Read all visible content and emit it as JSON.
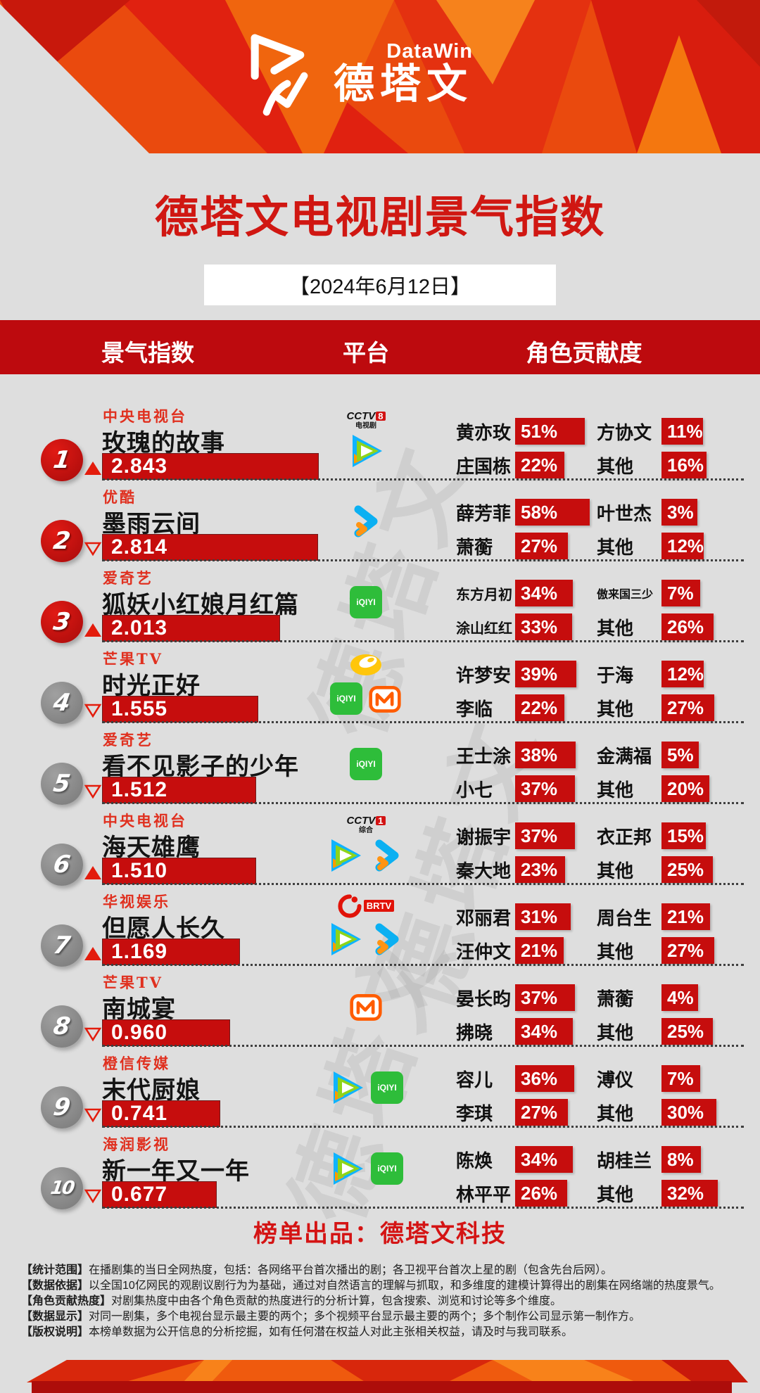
{
  "header": {
    "brand_en": "DataWin",
    "brand_cn": "德塔文",
    "title": "德塔文电视剧景气指数",
    "date": "【2024年6月12日】",
    "columns": {
      "index": "景气指数",
      "platform": "平台",
      "contribution": "角色贡献度"
    }
  },
  "colors": {
    "bg": "#dedede",
    "banner_red": "#ea4a0e",
    "deep_red": "#bd0a0e",
    "bar_red": "#c60d0d",
    "company_red": "#e0301f",
    "title_red": "#d01712",
    "producer_red": "#d41414",
    "trend_red": "#e31c0c",
    "rank_red": "#c40f0f",
    "rank_gray": "#8d8d8d",
    "bottom_bar": "#ad0d0a"
  },
  "watermark_text": "德塔文",
  "platform_meta": {
    "cctv8": {
      "word": "CCTV",
      "num": "8",
      "sub": "电视剧"
    },
    "cctv1": {
      "word": "CCTV",
      "num": "1",
      "sub": "综合"
    },
    "tencent": {
      "label": "腾讯视频"
    },
    "youku": {
      "label": "优酷"
    },
    "iqiyi": {
      "label": "iQIYI"
    },
    "mgtv": {
      "label": "芒果TV"
    },
    "hunantv": {
      "label": "湖南卫视"
    },
    "brtv": {
      "label": "BRTV"
    }
  },
  "chart_data": {
    "type": "bar",
    "title": "德塔文电视剧景气指数",
    "date": "2024年6月12日",
    "categories": [
      "玫瑰的故事",
      "墨雨云间",
      "狐妖小红娘月红篇",
      "时光正好",
      "看不见影子的少年",
      "海天雄鹰",
      "但愿人长久",
      "南城宴",
      "末代厨娘",
      "新一年又一年"
    ],
    "values": [
      2.843,
      2.814,
      2.013,
      1.555,
      1.512,
      1.51,
      1.169,
      0.96,
      0.741,
      0.677
    ]
  },
  "rows": [
    {
      "rank": "1",
      "trend": "up",
      "company": "中央电视台",
      "title": "玫瑰的故事",
      "index": "2.843",
      "platforms": [
        [
          "cctv8"
        ],
        [
          "tencent"
        ]
      ],
      "actors": [
        {
          "name": "黄亦玫",
          "pct": 51
        },
        {
          "name": "方协文",
          "pct": 11
        },
        {
          "name": "庄国栋",
          "pct": 22
        },
        {
          "name": "其他",
          "pct": 16
        }
      ]
    },
    {
      "rank": "2",
      "trend": "down",
      "company": "优酷",
      "title": "墨雨云间",
      "index": "2.814",
      "platforms": [
        [
          "youku"
        ]
      ],
      "actors": [
        {
          "name": "薛芳菲",
          "pct": 58
        },
        {
          "name": "叶世杰",
          "pct": 3
        },
        {
          "name": "萧蘅",
          "pct": 27
        },
        {
          "name": "其他",
          "pct": 12
        }
      ]
    },
    {
      "rank": "3",
      "trend": "up",
      "company": "爱奇艺",
      "title": "狐妖小红娘月红篇",
      "index": "2.013",
      "platforms": [
        [
          "iqiyi"
        ]
      ],
      "actors": [
        {
          "name": "东方月初",
          "pct": 34
        },
        {
          "name": "傲来国三少",
          "pct": 7
        },
        {
          "name": "涂山红红",
          "pct": 33
        },
        {
          "name": "其他",
          "pct": 26
        }
      ]
    },
    {
      "rank": "4",
      "trend": "down",
      "company": "芒果TV",
      "title": "时光正好",
      "index": "1.555",
      "platforms": [
        [
          "hunantv"
        ],
        [
          "iqiyi",
          "mgtv"
        ]
      ],
      "actors": [
        {
          "name": "许梦安",
          "pct": 39
        },
        {
          "name": "于海",
          "pct": 12
        },
        {
          "name": "李临",
          "pct": 22
        },
        {
          "name": "其他",
          "pct": 27
        }
      ]
    },
    {
      "rank": "5",
      "trend": "down",
      "company": "爱奇艺",
      "title": "看不见影子的少年",
      "index": "1.512",
      "platforms": [
        [
          "iqiyi"
        ]
      ],
      "actors": [
        {
          "name": "王士涂",
          "pct": 38
        },
        {
          "name": "金满福",
          "pct": 5
        },
        {
          "name": "小七",
          "pct": 37
        },
        {
          "name": "其他",
          "pct": 20
        }
      ]
    },
    {
      "rank": "6",
      "trend": "up",
      "company": "中央电视台",
      "title": "海天雄鹰",
      "index": "1.510",
      "platforms": [
        [
          "cctv1"
        ],
        [
          "tencent",
          "youku"
        ]
      ],
      "actors": [
        {
          "name": "谢振宇",
          "pct": 37
        },
        {
          "name": "衣正邦",
          "pct": 15
        },
        {
          "name": "秦大地",
          "pct": 23
        },
        {
          "name": "其他",
          "pct": 25
        }
      ]
    },
    {
      "rank": "7",
      "trend": "up",
      "company": "华视娱乐",
      "title": "但愿人长久",
      "index": "1.169",
      "platforms": [
        [
          "brtv"
        ],
        [
          "tencent",
          "youku"
        ]
      ],
      "actors": [
        {
          "name": "邓丽君",
          "pct": 31
        },
        {
          "name": "周台生",
          "pct": 21
        },
        {
          "name": "汪仲文",
          "pct": 21
        },
        {
          "name": "其他",
          "pct": 27
        }
      ]
    },
    {
      "rank": "8",
      "trend": "down",
      "company": "芒果TV",
      "title": "南城宴",
      "index": "0.960",
      "platforms": [
        [
          "mgtv"
        ]
      ],
      "actors": [
        {
          "name": "晏长昀",
          "pct": 37
        },
        {
          "name": "萧蘅",
          "pct": 4
        },
        {
          "name": "拂晓",
          "pct": 34
        },
        {
          "name": "其他",
          "pct": 25
        }
      ]
    },
    {
      "rank": "9",
      "trend": "down",
      "company": "橙信传媒",
      "title": "末代厨娘",
      "index": "0.741",
      "platforms": [
        [
          "tencent",
          "iqiyi"
        ]
      ],
      "actors": [
        {
          "name": "容儿",
          "pct": 36
        },
        {
          "name": "溥仪",
          "pct": 7
        },
        {
          "name": "李琪",
          "pct": 27
        },
        {
          "name": "其他",
          "pct": 30
        }
      ]
    },
    {
      "rank": "10",
      "trend": "down",
      "company": "海润影视",
      "title": "新一年又一年",
      "index": "0.677",
      "platforms": [
        [
          "tencent",
          "iqiyi"
        ]
      ],
      "actors": [
        {
          "name": "陈焕",
          "pct": 34
        },
        {
          "name": "胡桂兰",
          "pct": 8
        },
        {
          "name": "林平平",
          "pct": 26
        },
        {
          "name": "其他",
          "pct": 32
        }
      ]
    }
  ],
  "footer": {
    "producer": "榜单出品：德塔文科技",
    "notes": [
      {
        "label": "统计范围",
        "text": "在播剧集的当日全网热度，包括：各网络平台首次播出的剧；各卫视平台首次上星的剧（包含先台后网）。"
      },
      {
        "label": "数据依据",
        "text": "以全国10亿网民的观剧议剧行为为基础，通过对自然语言的理解与抓取，和多维度的建模计算得出的剧集在网络端的热度景气。"
      },
      {
        "label": "角色贡献热度",
        "text": "对剧集热度中由各个角色贡献的热度进行的分析计算，包含搜索、浏览和讨论等多个维度。"
      },
      {
        "label": "数据显示",
        "text": "对同一剧集，多个电视台显示最主要的两个；多个视频平台显示最主要的两个；多个制作公司显示第一制作方。"
      },
      {
        "label": "版权说明",
        "text": "本榜单数据为公开信息的分析挖掘，如有任何潜在权益人对此主张相关权益，请及时与我司联系。"
      }
    ]
  }
}
